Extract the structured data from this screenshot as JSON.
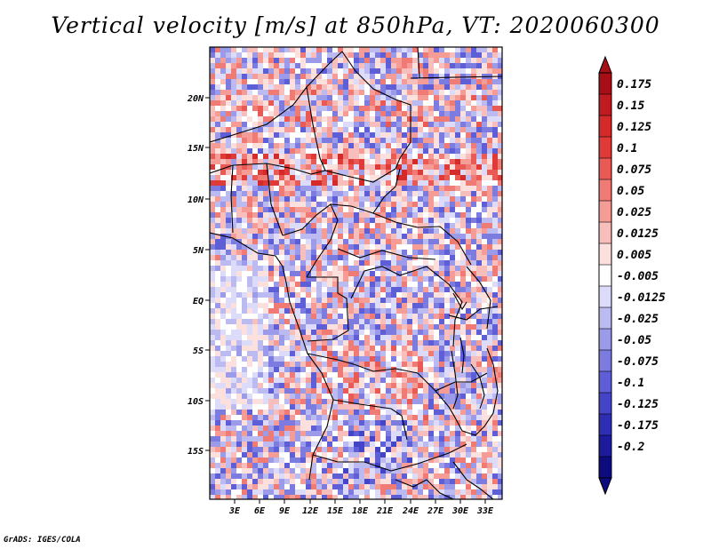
{
  "title": "Vertical velocity [m/s] at 850hPa, VT: 2020060300",
  "credit": "GrADS: IGES/COLA",
  "map": {
    "lat_ticks": [
      "20N",
      "15N",
      "10N",
      "5N",
      "EQ",
      "5S",
      "10S",
      "15S"
    ],
    "lon_ticks": [
      "3E",
      "6E",
      "9E",
      "12E",
      "15E",
      "18E",
      "21E",
      "24E",
      "27E",
      "30E",
      "33E"
    ]
  },
  "colorbar": {
    "labels": [
      "0.175",
      "0.15",
      "0.125",
      "0.1",
      "0.075",
      "0.05",
      "0.025",
      "0.0125",
      "0.005",
      "-0.005",
      "-0.0125",
      "-0.025",
      "-0.05",
      "-0.075",
      "-0.1",
      "-0.125",
      "-0.175",
      "-0.2"
    ],
    "colors": [
      "#a50f15",
      "#c01b20",
      "#d42a2a",
      "#e03a38",
      "#e95a55",
      "#f07a74",
      "#f59c97",
      "#f8bebc",
      "#fce0de",
      "#ffffff",
      "#dcdcfa",
      "#bbbbf2",
      "#9b9bea",
      "#7c7ce0",
      "#5e5ed6",
      "#4444c8",
      "#2e2eb4",
      "#1b1b9c",
      "#0c0c7e"
    ]
  }
}
